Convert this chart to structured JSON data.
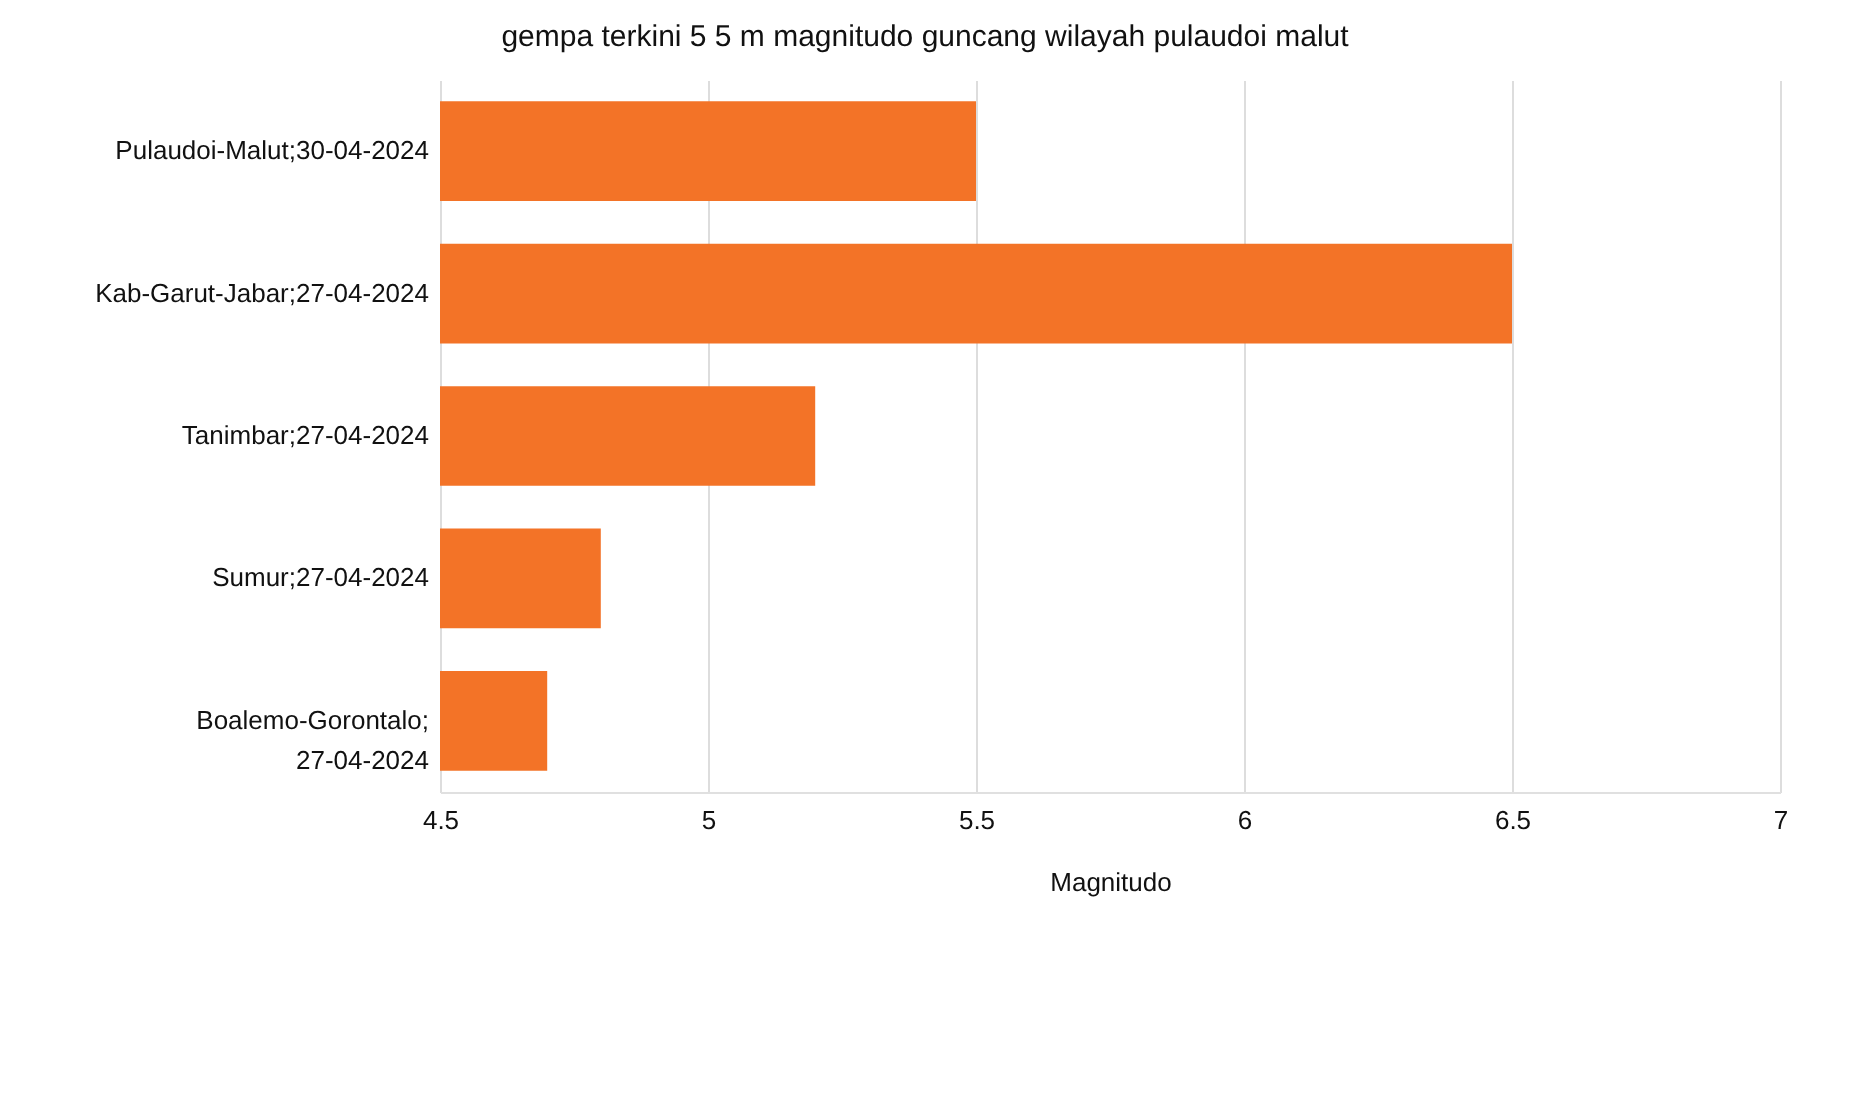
{
  "chart_data": {
    "type": "bar",
    "orientation": "horizontal",
    "title": "gempa terkini 5 5 m magnitudo guncang wilayah pulaudoi malut",
    "xlabel": "Magnitudo",
    "categories": [
      "Pulaudoi-Malut;30-04-2024",
      "Kab-Garut-Jabar;27-04-2024",
      "Tanimbar;27-04-2024",
      "Sumur;27-04-2024",
      "Boalemo-Gorontalo; 27-04-2024"
    ],
    "values": [
      5.5,
      6.5,
      5.2,
      4.8,
      4.7
    ],
    "color": "#f37327",
    "xlim": [
      4.5,
      7
    ],
    "xticks": [
      4.5,
      5,
      5.5,
      6,
      6.5,
      7
    ],
    "grid": "x"
  }
}
